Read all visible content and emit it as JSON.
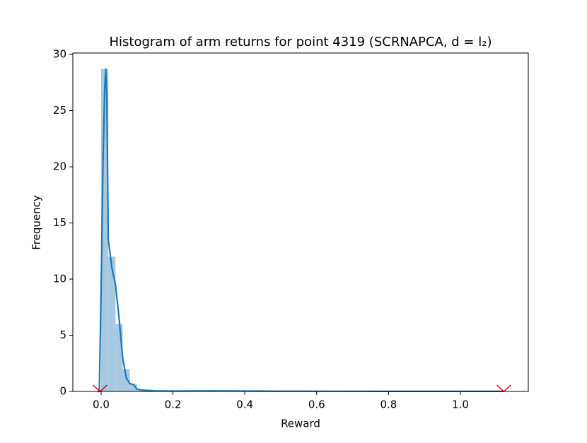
{
  "chart_data": {
    "type": "histogram",
    "title": "Histogram of arm returns for point 4319 (SCRNAPCA, d = l₂)",
    "x_label": "Reward",
    "y_label": "Frequency",
    "bins": [
      0.0,
      0.02,
      0.04,
      0.06,
      0.08,
      0.1,
      0.12
    ],
    "values": [
      28.7,
      12,
      6,
      2,
      0.7,
      0.2
    ],
    "color": "#a6c8e0",
    "kde": {
      "color": "#1f77b4",
      "x": [
        -0.01,
        -0.005,
        0.0,
        0.005,
        0.01,
        0.013,
        0.016,
        0.02,
        0.03,
        0.04,
        0.05,
        0.06,
        0.07,
        0.08,
        0.09,
        0.1,
        0.12,
        0.15,
        0.2,
        0.3,
        0.5,
        0.8,
        1.0,
        1.12
      ],
      "y": [
        0,
        0,
        9,
        20,
        27,
        28.7,
        26,
        13.5,
        11,
        9.5,
        6.5,
        3,
        1.2,
        0.7,
        0.6,
        0.2,
        0.1,
        0.05,
        0.03,
        0.05,
        0.02,
        0.01,
        0.01,
        0.01
      ]
    },
    "markers": {
      "color": "#e8000b",
      "x": [
        -0.003,
        1.121
      ],
      "y": [
        0,
        0
      ]
    },
    "xlim": [
      -0.0787,
      1.189
    ],
    "ylim": [
      0,
      30.13
    ],
    "xticks": [
      {
        "value": 0.0,
        "label": "0.0"
      },
      {
        "value": 0.2,
        "label": "0.2"
      },
      {
        "value": 0.4,
        "label": "0.4"
      },
      {
        "value": 0.6,
        "label": "0.6"
      },
      {
        "value": 0.8,
        "label": "0.8"
      },
      {
        "value": 1.0,
        "label": "1.0"
      }
    ],
    "yticks": [
      0,
      5,
      10,
      15,
      20,
      25,
      30
    ]
  }
}
